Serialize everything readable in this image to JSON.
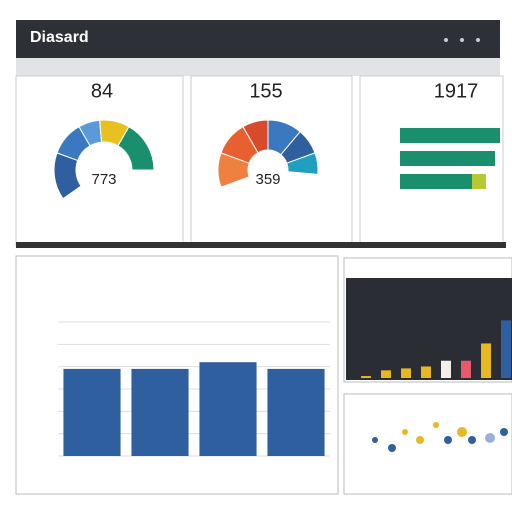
{
  "header": {
    "title": "Diasard"
  },
  "cards": [
    {
      "value": "84",
      "center": "773"
    },
    {
      "value": "155",
      "center": "359"
    },
    {
      "value": "1917"
    }
  ],
  "chart_data": [
    {
      "type": "bar",
      "categories": [
        null,
        null,
        null,
        null
      ],
      "values": [
        3.9,
        3.9,
        4.2,
        3.9
      ],
      "color": "#2f5f9e",
      "ylim": [
        0,
        6
      ],
      "yticks": [
        0,
        1,
        2,
        3,
        4,
        5,
        6
      ],
      "grid": true
    },
    {
      "type": "hbar",
      "categories": [
        null,
        null,
        null
      ],
      "series": [
        {
          "color": "#1a8f6e",
          "values": [
            100,
            95,
            72
          ]
        },
        {
          "color": "#b8c832",
          "values": [
            0,
            0,
            14
          ]
        }
      ],
      "xlim": [
        0,
        100
      ]
    },
    {
      "type": "bar",
      "categories": [
        null,
        null,
        null,
        null,
        null,
        null,
        null,
        null
      ],
      "values": [
        2,
        8,
        10,
        12,
        18,
        18,
        36,
        60
      ],
      "colors": [
        "#e8b820",
        "#e8b820",
        "#e8b820",
        "#e8b820",
        "#f2f0e6",
        "#e85a6a",
        "#e8b820",
        "#2f5f9e"
      ],
      "ylim": [
        0,
        100
      ]
    }
  ]
}
